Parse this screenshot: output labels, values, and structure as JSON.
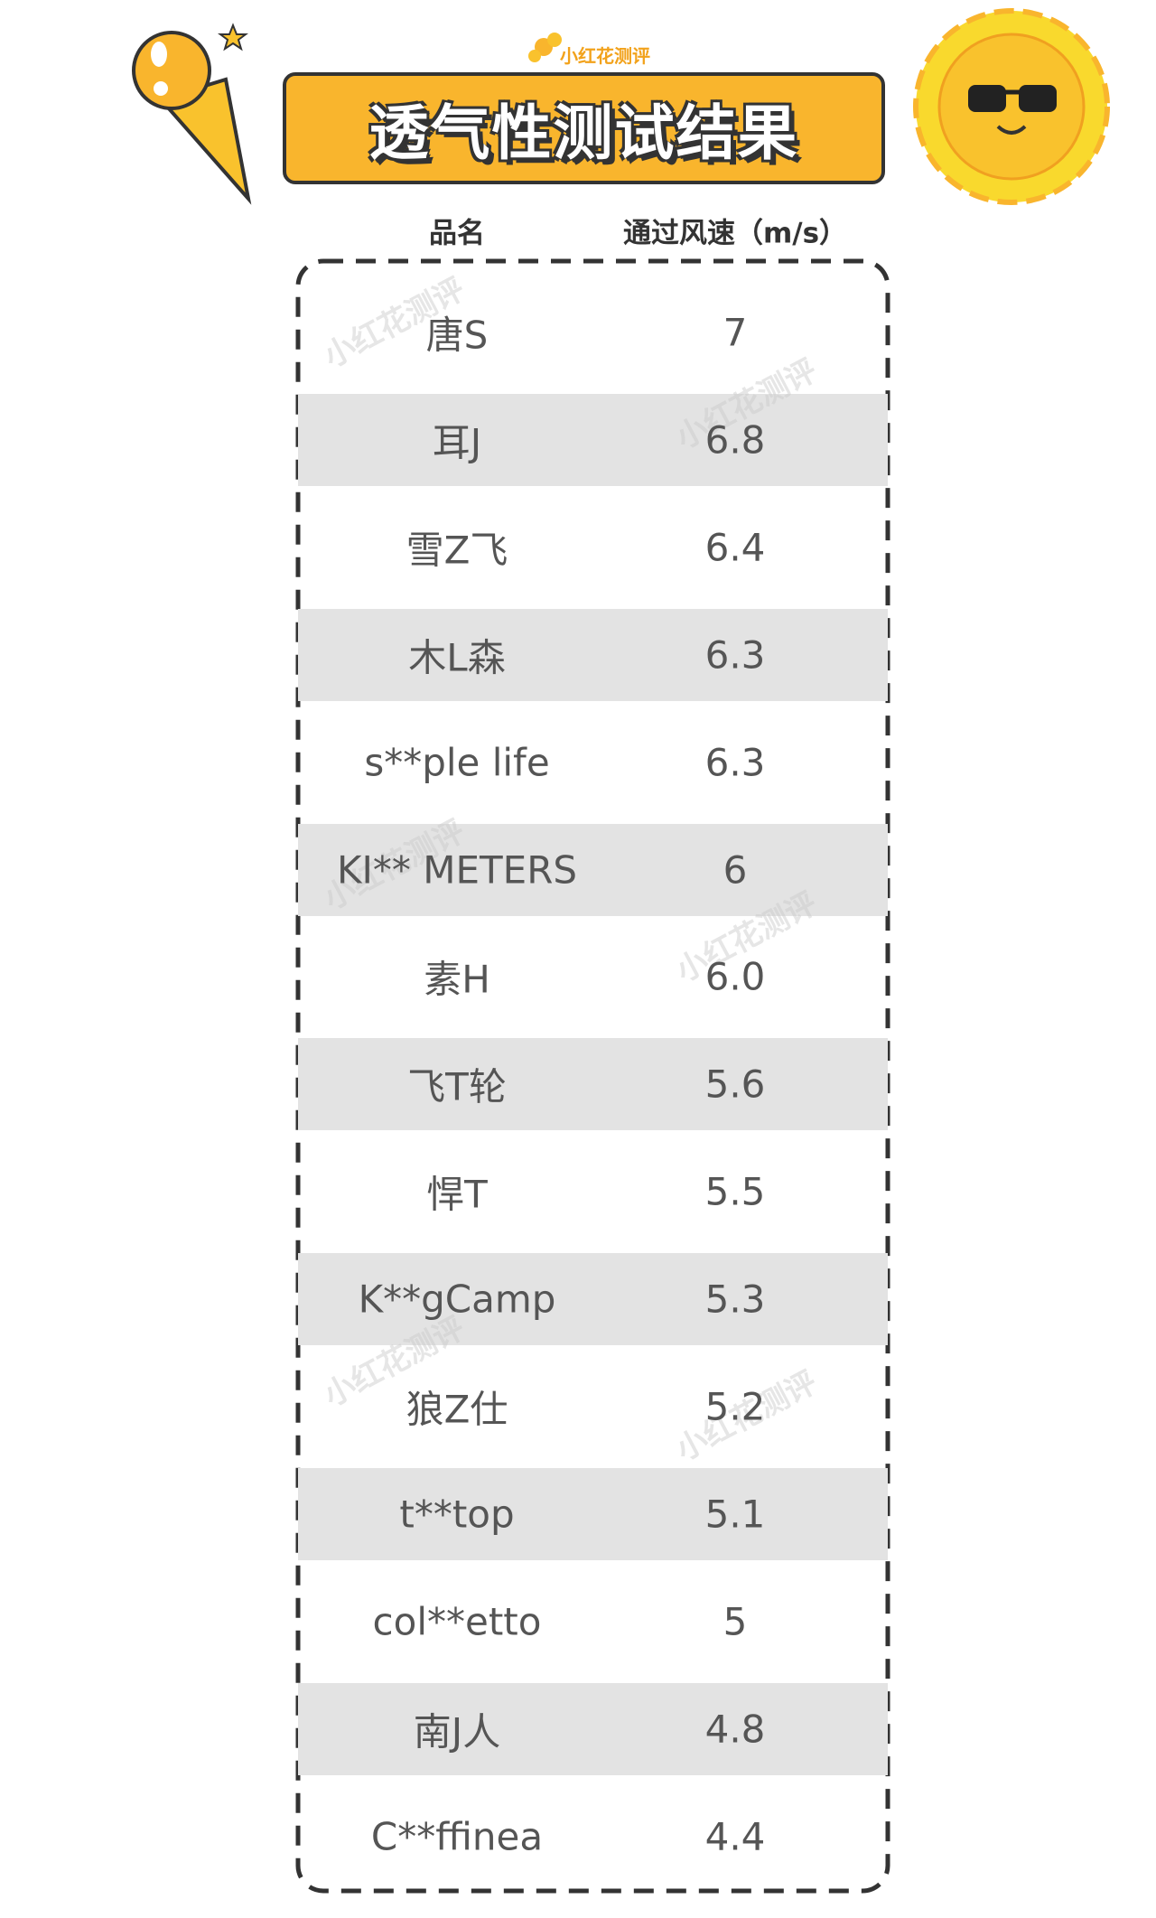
{
  "header": {
    "brand": "小红花测评",
    "title": "透气性测试结果"
  },
  "table": {
    "columns": [
      "品名",
      "通过风速（m/s）"
    ],
    "rows": [
      [
        "唐S",
        "7"
      ],
      [
        "耳J",
        "6.8"
      ],
      [
        "雪Z飞",
        "6.4"
      ],
      [
        "木L森",
        "6.3"
      ],
      [
        "s**ple life",
        "6.3"
      ],
      [
        "KI** METERS",
        "6"
      ],
      [
        "素H",
        "6.0"
      ],
      [
        "飞T轮",
        "5.6"
      ],
      [
        "悍T",
        "5.5"
      ],
      [
        "K**gCamp",
        "5.3"
      ],
      [
        "狼Z仕",
        "5.2"
      ],
      [
        "t**top",
        "5.1"
      ],
      [
        "col**etto",
        "5"
      ],
      [
        "南J人",
        "4.8"
      ],
      [
        "C**ffinea",
        "4.4"
      ]
    ]
  }
}
